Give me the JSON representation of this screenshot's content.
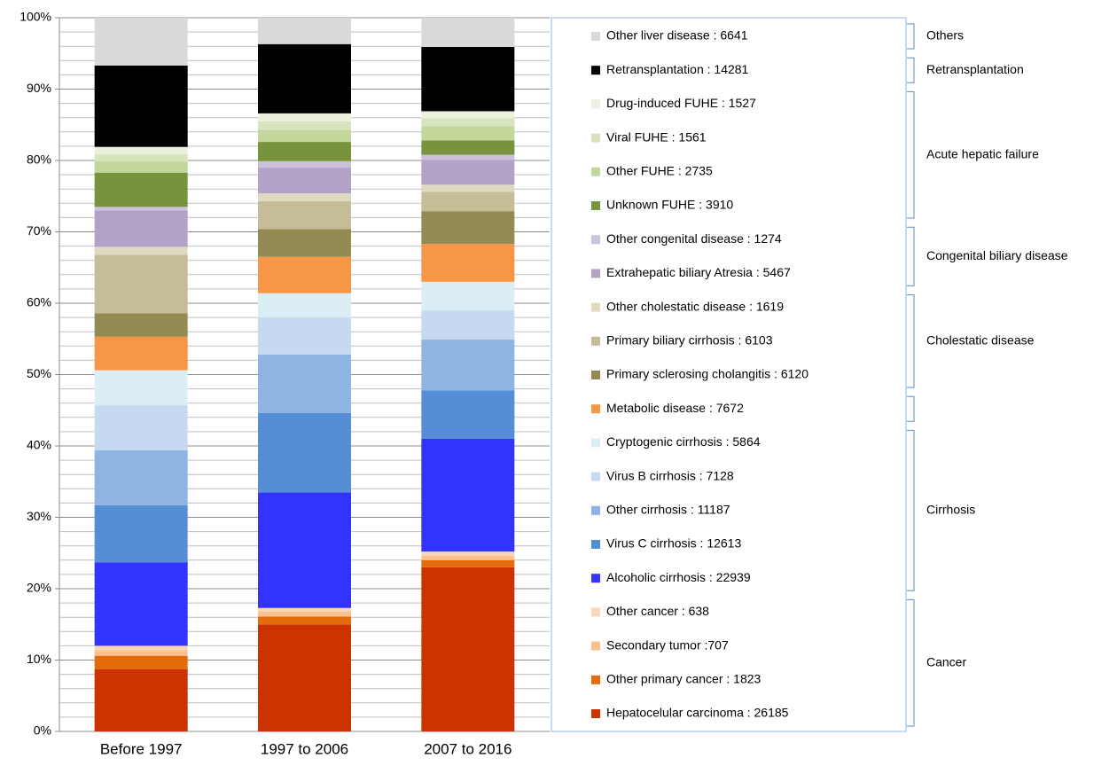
{
  "chart_data": {
    "type": "stacked_bar_100",
    "categories": [
      "Before 1997",
      "1997 to 2006",
      "2007 to 2016"
    ],
    "ylim": [
      0,
      100
    ],
    "yticks": [
      {
        "value": 0,
        "label": "0%"
      },
      {
        "value": 10,
        "label": "10%"
      },
      {
        "value": 20,
        "label": "20%"
      },
      {
        "value": 30,
        "label": "30%"
      },
      {
        "value": 40,
        "label": "40%"
      },
      {
        "value": 50,
        "label": "50%"
      },
      {
        "value": 60,
        "label": "60%"
      },
      {
        "value": 70,
        "label": "70%"
      },
      {
        "value": 80,
        "label": "80%"
      },
      {
        "value": 90,
        "label": "90%"
      },
      {
        "value": 100,
        "label": "100%"
      }
    ],
    "minor_gridlines": [
      2,
      4,
      6,
      8,
      12,
      14,
      16,
      18,
      22,
      24,
      26,
      28,
      32,
      34,
      36,
      38,
      42,
      44,
      46,
      48,
      52,
      54,
      56,
      58,
      62,
      64,
      66,
      68,
      72,
      74,
      76,
      78,
      82,
      84,
      86,
      88,
      92,
      94,
      96,
      98
    ],
    "grid": true,
    "series": [
      {
        "name": "Other liver disease : 6641",
        "color": "#d9d9d9",
        "values": [
          6.7,
          3.7,
          4.1
        ]
      },
      {
        "name": "Retransplantation : 14281",
        "color": "#000000",
        "values": [
          11.4,
          9.7,
          9.0
        ]
      },
      {
        "name": "Drug-induced FUHE : 1527",
        "color": "#ebf1de",
        "values": [
          1.0,
          1.1,
          1.0
        ]
      },
      {
        "name": "Viral FUHE : 1561",
        "color": "#d7e4bd",
        "values": [
          1.0,
          1.2,
          1.1
        ]
      },
      {
        "name": "Other FUHE : 2735",
        "color": "#c3d69b",
        "values": [
          1.6,
          1.7,
          2.0
        ]
      },
      {
        "name": "Unknown FUHE : 3910",
        "color": "#77933c",
        "values": [
          4.8,
          2.7,
          2.0
        ]
      },
      {
        "name": "Other congenital disease : 1274",
        "color": "#ccc1da",
        "values": [
          0.5,
          0.9,
          0.7
        ]
      },
      {
        "name": "Extrahepatic biliary Atresia : 5467",
        "color": "#b3a2c7",
        "values": [
          5.1,
          3.6,
          3.5
        ]
      },
      {
        "name": "Other cholestatic disease : 1619",
        "color": "#ddd9c3",
        "values": [
          1.1,
          1.1,
          1.0
        ]
      },
      {
        "name": "Primary biliary cirrhosis : 6103",
        "color": "#c4bd97",
        "values": [
          8.2,
          3.9,
          2.7
        ]
      },
      {
        "name": "Primary sclerosing cholangitis : 6120",
        "color": "#948a54",
        "values": [
          3.3,
          3.9,
          4.6
        ]
      },
      {
        "name": "Metabolic disease : 7672",
        "color": "#f79646",
        "values": [
          4.7,
          5.1,
          5.3
        ]
      },
      {
        "name": "Cryptogenic cirrhosis : 5864",
        "color": "#dbeef4",
        "values": [
          4.9,
          3.4,
          4.0
        ]
      },
      {
        "name": "Virus B cirrhosis : 7128",
        "color": "#c6d9f1",
        "values": [
          6.3,
          5.2,
          4.1
        ]
      },
      {
        "name": "Other cirrhosis : 11187",
        "color": "#8eb4e3",
        "values": [
          7.7,
          8.2,
          7.1
        ]
      },
      {
        "name": "Virus C cirrhosis : 12613",
        "color": "#558ed5",
        "values": [
          8.0,
          11.1,
          6.8
        ]
      },
      {
        "name": "Alcoholic cirrhosis : 22939",
        "color": "#3333ff",
        "values": [
          11.7,
          16.2,
          15.8
        ]
      },
      {
        "name": "Other cancer : 638",
        "color": "#fcd5b5",
        "values": [
          0.6,
          0.5,
          0.6
        ]
      },
      {
        "name": "Secondary tumor :707",
        "color": "#fac090",
        "values": [
          0.8,
          0.7,
          0.6
        ]
      },
      {
        "name": "Other primary cancer : 1823",
        "color": "#e46c0a",
        "values": [
          1.9,
          1.1,
          1.0
        ]
      },
      {
        "name": "Hepatocelular carcinoma : 26185",
        "color": "#cc3300",
        "values": [
          8.7,
          15.0,
          23.0
        ]
      }
    ],
    "groups": [
      "Others",
      "Retransplantation",
      "Acute hepatic failure",
      "Congenital biliary disease",
      "Cholestatic disease",
      "Cirrhosis",
      "Cancer"
    ]
  }
}
